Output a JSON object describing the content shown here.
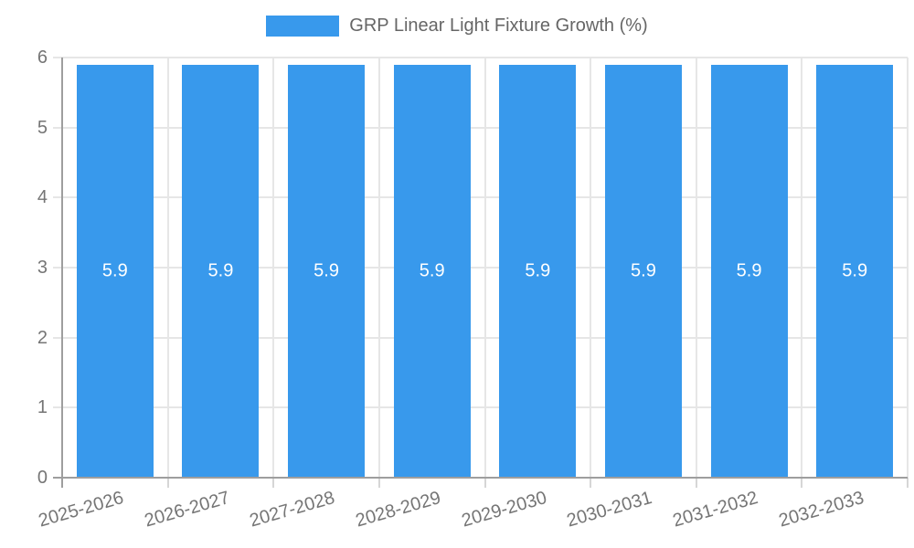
{
  "chart_data": {
    "type": "bar",
    "title": "GRP Linear Light Fixture Growth (%)",
    "legend_position": "top",
    "categories": [
      "2025-2026",
      "2026-2027",
      "2027-2028",
      "2028-2029",
      "2029-2030",
      "2030-2031",
      "2031-2032",
      "2032-2033"
    ],
    "values": [
      5.9,
      5.9,
      5.9,
      5.9,
      5.9,
      5.9,
      5.9,
      5.9
    ],
    "bar_value_labels": [
      "5.9",
      "5.9",
      "5.9",
      "5.9",
      "5.9",
      "5.9",
      "5.9",
      "5.9"
    ],
    "ylim": [
      0,
      6
    ],
    "yticks": [
      0,
      1,
      2,
      3,
      4,
      5,
      6
    ],
    "grid": true,
    "xlabel_rotation_deg": -16,
    "colors": {
      "bar": "#3899ec",
      "bar_label": "#ffffff",
      "grid": "#e6e6e6",
      "boundary_tick": "#d6d6d6",
      "axis": "#9e9e9e",
      "tick_text": "#757575",
      "legend_text": "#666666"
    }
  }
}
